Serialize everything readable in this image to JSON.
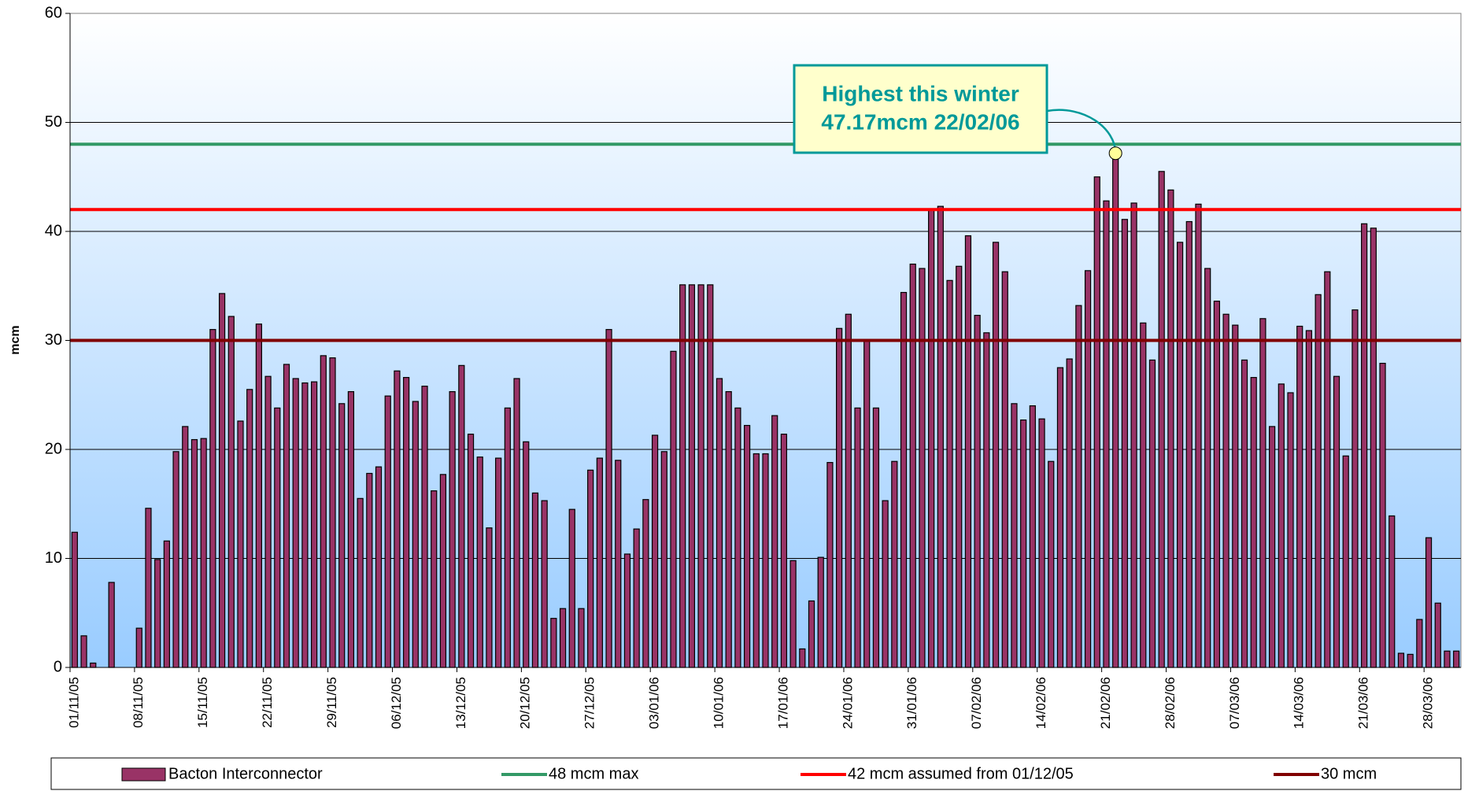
{
  "chart_data": {
    "type": "bar",
    "y_label": "mcm",
    "categories": [
      "01/11/05",
      null,
      null,
      null,
      null,
      null,
      null,
      "08/11/05",
      null,
      null,
      null,
      null,
      null,
      null,
      "15/11/05",
      null,
      null,
      null,
      null,
      null,
      null,
      "22/11/05",
      null,
      null,
      null,
      null,
      null,
      null,
      "29/11/05",
      null,
      null,
      null,
      null,
      null,
      null,
      "06/12/05",
      null,
      null,
      null,
      null,
      null,
      null,
      "13/12/05",
      null,
      null,
      null,
      null,
      null,
      null,
      "20/12/05",
      null,
      null,
      null,
      null,
      null,
      null,
      "27/12/05",
      null,
      null,
      null,
      null,
      null,
      null,
      "03/01/06",
      null,
      null,
      null,
      null,
      null,
      null,
      "10/01/06",
      null,
      null,
      null,
      null,
      null,
      null,
      "17/01/06",
      null,
      null,
      null,
      null,
      null,
      null,
      "24/01/06",
      null,
      null,
      null,
      null,
      null,
      null,
      "31/01/06",
      null,
      null,
      null,
      null,
      null,
      null,
      "07/02/06",
      null,
      null,
      null,
      null,
      null,
      null,
      "14/02/06",
      null,
      null,
      null,
      null,
      null,
      null,
      "21/02/06",
      null,
      null,
      null,
      null,
      null,
      null,
      "28/02/06",
      null,
      null,
      null,
      null,
      null,
      null,
      "07/03/06",
      null,
      null,
      null,
      null,
      null,
      null,
      "14/03/06",
      null,
      null,
      null,
      null,
      null,
      null,
      "21/03/06",
      null,
      null,
      null,
      null,
      null,
      null,
      "28/03/06",
      null,
      null,
      null
    ],
    "series": [
      {
        "name": "Bacton Interconnector",
        "color": "#993366",
        "values": [
          12.4,
          2.9,
          0.4,
          0,
          7.8,
          0,
          0,
          3.6,
          14.6,
          9.9,
          11.6,
          19.8,
          22.1,
          20.9,
          21.0,
          31.0,
          34.3,
          32.2,
          22.6,
          25.5,
          31.5,
          26.7,
          23.8,
          27.8,
          26.5,
          26.1,
          26.2,
          28.6,
          28.4,
          24.2,
          25.3,
          15.5,
          17.8,
          18.4,
          24.9,
          27.2,
          26.6,
          24.4,
          25.8,
          16.2,
          17.7,
          25.3,
          27.7,
          21.4,
          19.3,
          12.8,
          19.2,
          23.8,
          26.5,
          20.7,
          16.0,
          15.3,
          4.5,
          5.4,
          14.5,
          5.4,
          18.1,
          19.2,
          31.0,
          19.0,
          10.4,
          12.7,
          15.4,
          21.3,
          19.8,
          29.0,
          35.1,
          35.1,
          35.1,
          35.1,
          26.5,
          25.3,
          23.8,
          22.2,
          19.6,
          19.6,
          23.1,
          21.4,
          9.8,
          1.7,
          6.1,
          10.1,
          18.8,
          31.1,
          32.4,
          23.8,
          30.1,
          23.8,
          15.3,
          18.9,
          34.4,
          37.0,
          36.6,
          42.0,
          42.3,
          35.5,
          36.8,
          39.6,
          32.3,
          30.7,
          39.0,
          36.3,
          24.2,
          22.7,
          24.0,
          22.8,
          18.9,
          27.5,
          28.3,
          33.2,
          36.4,
          45.0,
          42.8,
          47.17,
          41.1,
          42.6,
          31.6,
          28.2,
          45.5,
          43.8,
          39.0,
          40.9,
          42.5,
          36.6,
          33.6,
          32.4,
          31.4,
          28.2,
          26.6,
          32.0,
          22.1,
          26.0,
          25.2,
          31.3,
          30.9,
          34.2,
          36.3,
          26.7,
          19.4,
          32.8,
          40.7,
          40.3,
          27.9,
          13.9,
          1.3,
          1.2,
          4.4,
          11.9,
          5.9,
          1.5,
          1.5
        ]
      }
    ],
    "reference_lines": [
      {
        "name": "48 mcm max",
        "value": 48,
        "color": "#339966"
      },
      {
        "name": "42 mcm assumed from 01/12/05",
        "value": 42,
        "color": "#ff0000"
      },
      {
        "name": "30 mcm",
        "value": 30,
        "color": "#800000"
      }
    ],
    "annotation": {
      "lines": [
        "Highest this winter",
        "47.17mcm 22/02/06"
      ],
      "point": 113,
      "color": "#009999"
    },
    "ylim": [
      0,
      60
    ],
    "yticks": [
      0,
      10,
      20,
      30,
      40,
      50,
      60
    ],
    "grid": true,
    "legend": "bottom"
  }
}
